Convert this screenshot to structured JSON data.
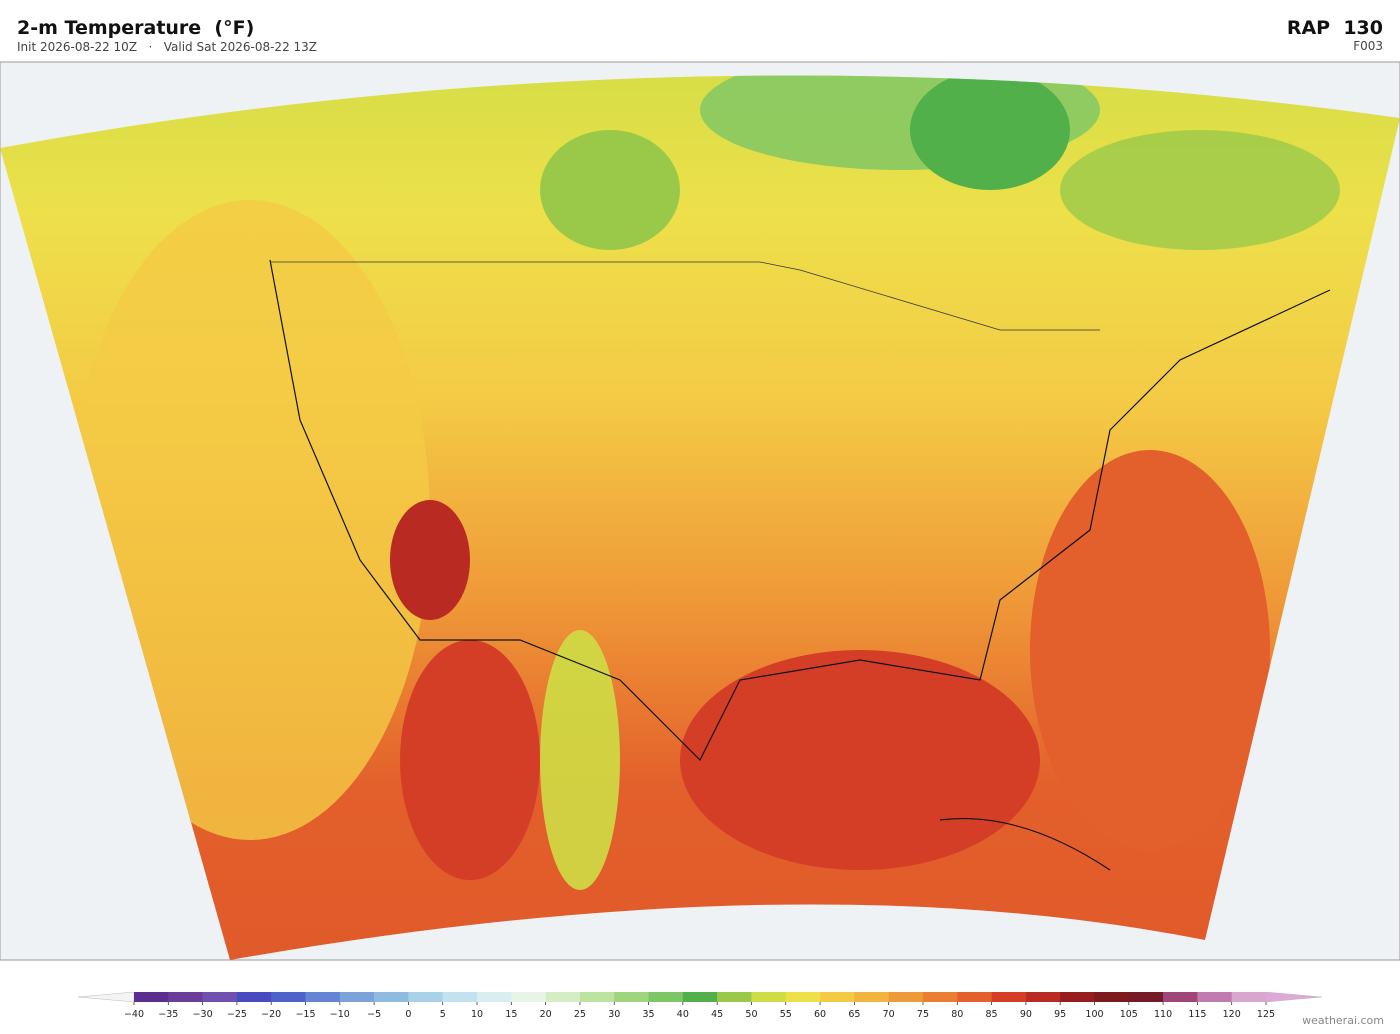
{
  "header": {
    "title": "2-m Temperature  (°F)",
    "subtitle": "Init 2026-08-22 10Z   ·   Valid Sat 2026-08-22 13Z",
    "model": "RAP  130",
    "forecast_hour": "F003"
  },
  "colorbar": {
    "ticks": [
      {
        "value": -40,
        "label": "−40"
      },
      {
        "value": -35,
        "label": "−35"
      },
      {
        "value": -30,
        "label": "−30"
      },
      {
        "value": -25,
        "label": "−25"
      },
      {
        "value": -20,
        "label": "−20"
      },
      {
        "value": -15,
        "label": "−15"
      },
      {
        "value": -10,
        "label": "−10"
      },
      {
        "value": -5,
        "label": "−5"
      },
      0,
      5,
      10,
      15,
      20,
      25,
      30,
      35,
      40,
      45,
      50,
      55,
      60,
      65,
      70,
      75,
      80,
      85,
      90,
      95,
      100,
      105,
      110,
      115,
      120,
      125
    ],
    "colors": [
      "#5b2d8e",
      "#6a3d9a",
      "#6f4fb0",
      "#4a4ac0",
      "#4e62cc",
      "#6584d4",
      "#7ba3da",
      "#8fbbe0",
      "#a9d1e8",
      "#c3e2ef",
      "#d8eef0",
      "#e8f5e6",
      "#d5edc4",
      "#bde3a0",
      "#9ed67f",
      "#7cc666",
      "#52b04a",
      "#9ac94a",
      "#cedd45",
      "#ede04a",
      "#f4ca45",
      "#f2b43e",
      "#ef9a38",
      "#ea7f33",
      "#e35f2b",
      "#d43e26",
      "#b82a22",
      "#961c1e",
      "#7e1a1e",
      "#761a26",
      "#a0457a",
      "#c27bb0",
      "#d9a6cf"
    ],
    "under_color": "#f4f4f4",
    "over_color": "#e0a8d8"
  },
  "footer": {
    "credit": "weatherai.com"
  }
}
